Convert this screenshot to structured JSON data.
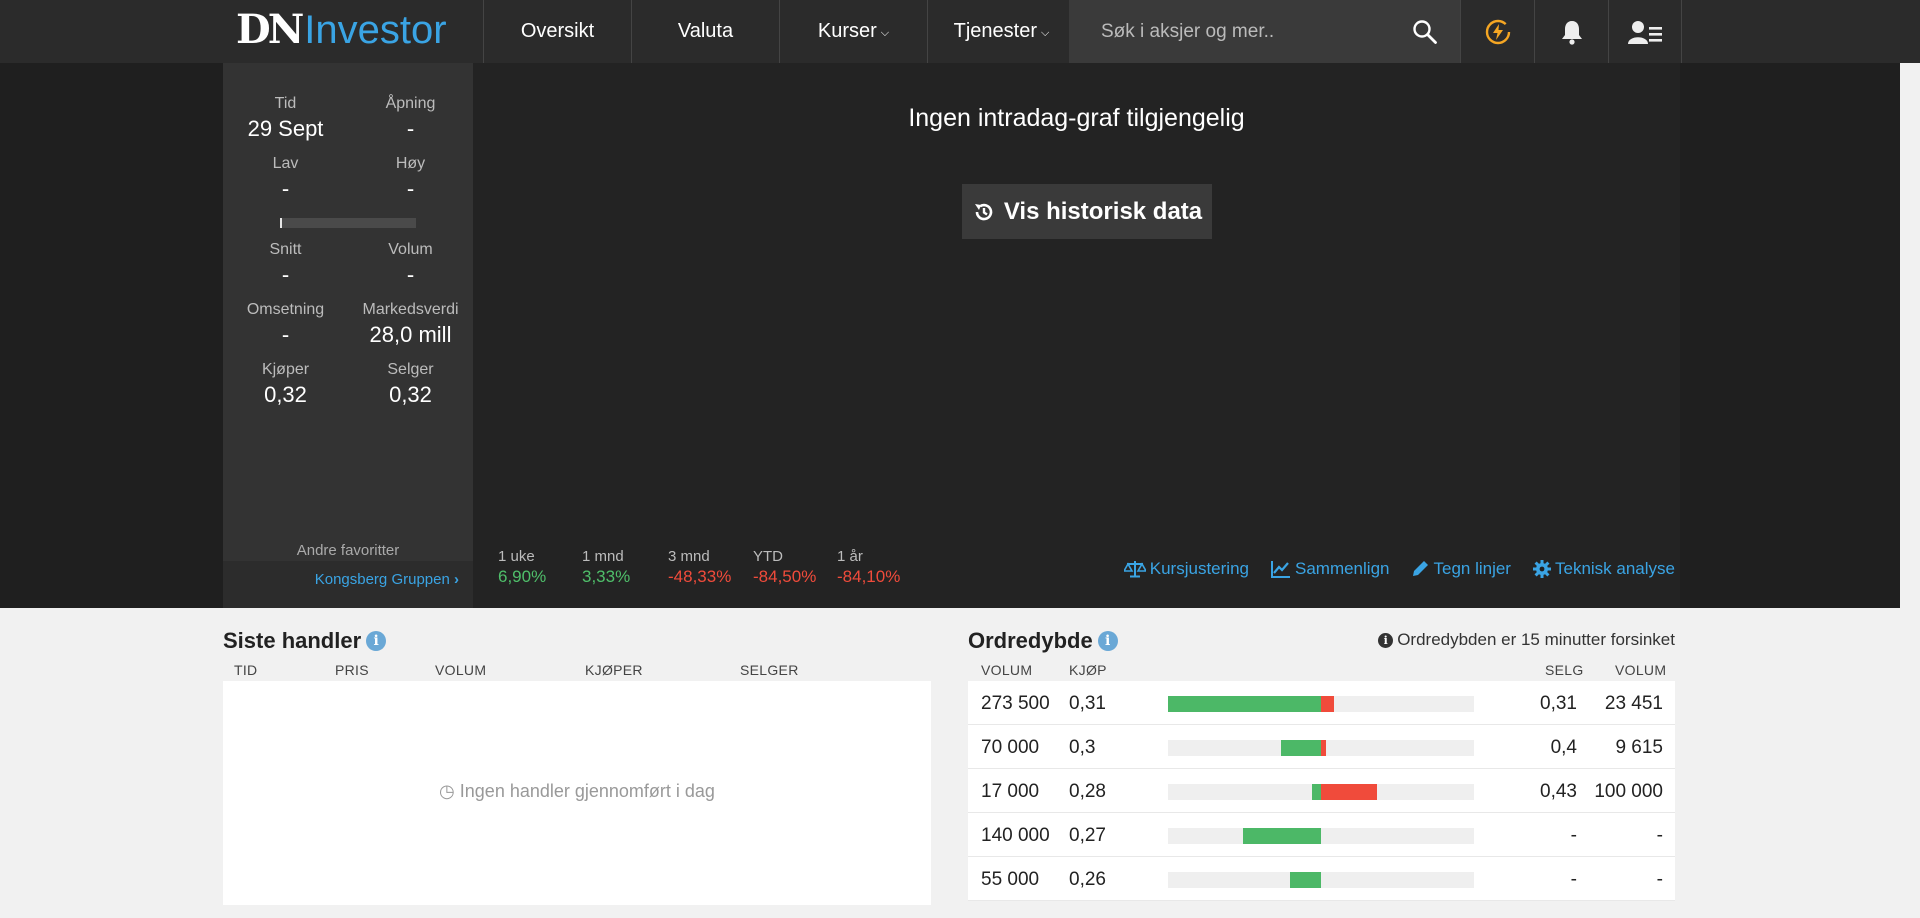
{
  "header": {
    "logo_dn": "DN",
    "logo_investor": "Investor",
    "nav": [
      {
        "label": "Oversikt",
        "dropdown": false
      },
      {
        "label": "Valuta",
        "dropdown": false
      },
      {
        "label": "Kurser",
        "dropdown": true
      },
      {
        "label": "Tjenester",
        "dropdown": true
      }
    ],
    "search_placeholder": "Søk i aksjer og mer..",
    "icons": [
      "search-icon",
      "flash-icon",
      "bell-icon",
      "user-menu-icon"
    ],
    "accent": "#3aa4e4",
    "flash_color": "#f5a623"
  },
  "stats": {
    "tid": {
      "label": "Tid",
      "value": "29 Sept"
    },
    "apning": {
      "label": "Åpning",
      "value": "-"
    },
    "lav": {
      "label": "Lav",
      "value": "-"
    },
    "hoy": {
      "label": "Høy",
      "value": "-"
    },
    "snitt": {
      "label": "Snitt",
      "value": "-"
    },
    "volum": {
      "label": "Volum",
      "value": "-"
    },
    "omsetning": {
      "label": "Omsetning",
      "value": "-"
    },
    "markedsverdi": {
      "label": "Markedsverdi",
      "value": "28,0 mill"
    },
    "kjoper": {
      "label": "Kjøper",
      "value": "0,32"
    },
    "selger": {
      "label": "Selger",
      "value": "0,32"
    },
    "favorites_label": "Andre favoritter",
    "favorite_link": "Kongsberg Gruppen"
  },
  "chart": {
    "no_data_text": "Ingen intradag-graf tilgjengelig",
    "history_button": "Vis historisk data"
  },
  "performance": [
    {
      "label": "1 uke",
      "value": "6,90%",
      "trend": "pos"
    },
    {
      "label": "1 mnd",
      "value": "3,33%",
      "trend": "pos"
    },
    {
      "label": "3 mnd",
      "value": "-48,33%",
      "trend": "neg"
    },
    {
      "label": "YTD",
      "value": "-84,50%",
      "trend": "neg"
    },
    {
      "label": "1 år",
      "value": "-84,10%",
      "trend": "neg"
    }
  ],
  "tools": [
    {
      "label": "Kursjustering",
      "icon": "scale-icon"
    },
    {
      "label": "Sammenlign",
      "icon": "line-chart-icon"
    },
    {
      "label": "Tegn linjer",
      "icon": "pencil-icon"
    },
    {
      "label": "Teknisk analyse",
      "icon": "gear-icon"
    }
  ],
  "trades": {
    "title": "Siste handler",
    "columns": [
      "TID",
      "PRIS",
      "VOLUM",
      "KJØPER",
      "SELGER"
    ],
    "empty_text": "Ingen handler gjennomført i dag"
  },
  "depth": {
    "title": "Ordredybde",
    "delay_note": "Ordredybden er 15 minutter forsinket",
    "columns": {
      "volum_buy": "VOLUM",
      "kjop": "KJØP",
      "selg": "SELG",
      "volum_sell": "VOLUM"
    },
    "rows": [
      {
        "buy_volume": "273 500",
        "buy_price": "0,31",
        "sell_price": "0,31",
        "sell_volume": "23 451",
        "buy_share": 1.0,
        "sell_share": 0.085
      },
      {
        "buy_volume": "70 000",
        "buy_price": "0,3",
        "sell_price": "0,4",
        "sell_volume": "9 615",
        "buy_share": 0.26,
        "sell_share": 0.035
      },
      {
        "buy_volume": "17 000",
        "buy_price": "0,28",
        "sell_price": "0,43",
        "sell_volume": "100 000",
        "buy_share": 0.062,
        "sell_share": 0.365
      },
      {
        "buy_volume": "140 000",
        "buy_price": "0,27",
        "sell_price": "-",
        "sell_volume": "-",
        "buy_share": 0.51,
        "sell_share": 0
      },
      {
        "buy_volume": "55 000",
        "buy_price": "0,26",
        "sell_price": "-",
        "sell_volume": "-",
        "buy_share": 0.2,
        "sell_share": 0
      }
    ]
  }
}
